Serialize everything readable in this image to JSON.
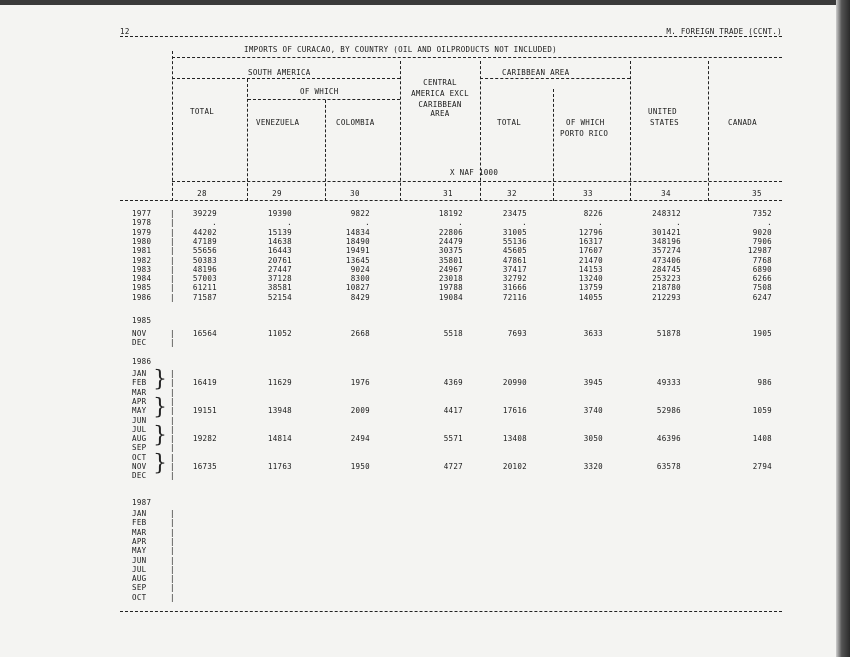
{
  "page_number": "12",
  "running_head": "M. FOREIGN TRADE (CCNT.)",
  "table_title": "IMPORTS OF CURACAO, BY COUNTRY (OIL AND OILPRODUCTS NOT INCLUDED)",
  "headers": {
    "south_america": "SOUTH AMERICA",
    "of_which": "OF WHICH",
    "total": "TOTAL",
    "venezuela": "VENEZUELA",
    "colombia": "COLOMBIA",
    "central_1": "CENTRAL",
    "central_2": "AMERICA EXCL",
    "central_3": "CARIBBEAN",
    "central_4": "AREA",
    "caribbean": "CARIBBEAN AREA",
    "car_total": "TOTAL",
    "car_of_which": "OF WHICH",
    "porto_rico": "PORTO RICO",
    "us_1": "UNITED",
    "us_2": "STATES",
    "canada": "CANADA",
    "unit": "X NAF 1000"
  },
  "column_numbers": [
    "28",
    "29",
    "30",
    "31",
    "32",
    "33",
    "34",
    "35"
  ],
  "annual": [
    {
      "label": "1977",
      "v": [
        "39229",
        "19390",
        "9822",
        "18192",
        "23475",
        "8226",
        "248312",
        "7352"
      ]
    },
    {
      "label": "1978",
      "v": [
        ".",
        ".",
        ".",
        ".",
        ".",
        ".",
        ".",
        "."
      ]
    },
    {
      "label": "1979",
      "v": [
        "44202",
        "15139",
        "14834",
        "22806",
        "31005",
        "12796",
        "301421",
        "9020"
      ]
    },
    {
      "label": "1980",
      "v": [
        "47189",
        "14638",
        "18490",
        "24479",
        "55136",
        "16317",
        "348196",
        "7906"
      ]
    },
    {
      "label": "1981",
      "v": [
        "55656",
        "16443",
        "19491",
        "30375",
        "45605",
        "17607",
        "357274",
        "12987"
      ]
    },
    {
      "label": "1982",
      "v": [
        "50383",
        "20761",
        "13645",
        "35801",
        "47861",
        "21470",
        "473406",
        "7768"
      ]
    },
    {
      "label": "1983",
      "v": [
        "48196",
        "27447",
        "9024",
        "24967",
        "37417",
        "14153",
        "284745",
        "6890"
      ]
    },
    {
      "label": "1984",
      "v": [
        "57003",
        "37128",
        "8300",
        "23018",
        "32792",
        "13240",
        "253223",
        "6266"
      ]
    },
    {
      "label": "1985",
      "v": [
        "61211",
        "38581",
        "10827",
        "19788",
        "31666",
        "13759",
        "218780",
        "7508"
      ]
    },
    {
      "label": "1986",
      "v": [
        "71587",
        "52154",
        "8429",
        "19084",
        "72116",
        "14055",
        "212293",
        "6247"
      ]
    }
  ],
  "y1985": {
    "year": "1985",
    "months": [
      {
        "label": "NOV",
        "v": [
          "16564",
          "11052",
          "2668",
          "5518",
          "7693",
          "3633",
          "51878",
          "1905"
        ]
      },
      {
        "label": "DEC",
        "v": []
      }
    ]
  },
  "y1986": {
    "year": "1986",
    "months": [
      "JAN",
      "FEB",
      "MAR",
      "APR",
      "MAY",
      "JUN",
      "JUL",
      "AUG",
      "SEP",
      "OCT",
      "NOV",
      "DEC"
    ],
    "quarters": [
      [
        "16419",
        "11629",
        "1976",
        "4369",
        "20990",
        "3945",
        "49333",
        "986"
      ],
      [
        "19151",
        "13948",
        "2009",
        "4417",
        "17616",
        "3740",
        "52986",
        "1059"
      ],
      [
        "19282",
        "14814",
        "2494",
        "5571",
        "13408",
        "3050",
        "46396",
        "1408"
      ],
      [
        "16735",
        "11763",
        "1950",
        "4727",
        "20102",
        "3320",
        "63578",
        "2794"
      ]
    ]
  },
  "y1987": {
    "year": "1987",
    "months": [
      "JAN",
      "FEB",
      "MAR",
      "APR",
      "MAY",
      "JUN",
      "JUL",
      "AUG",
      "SEP",
      "OCT"
    ]
  }
}
